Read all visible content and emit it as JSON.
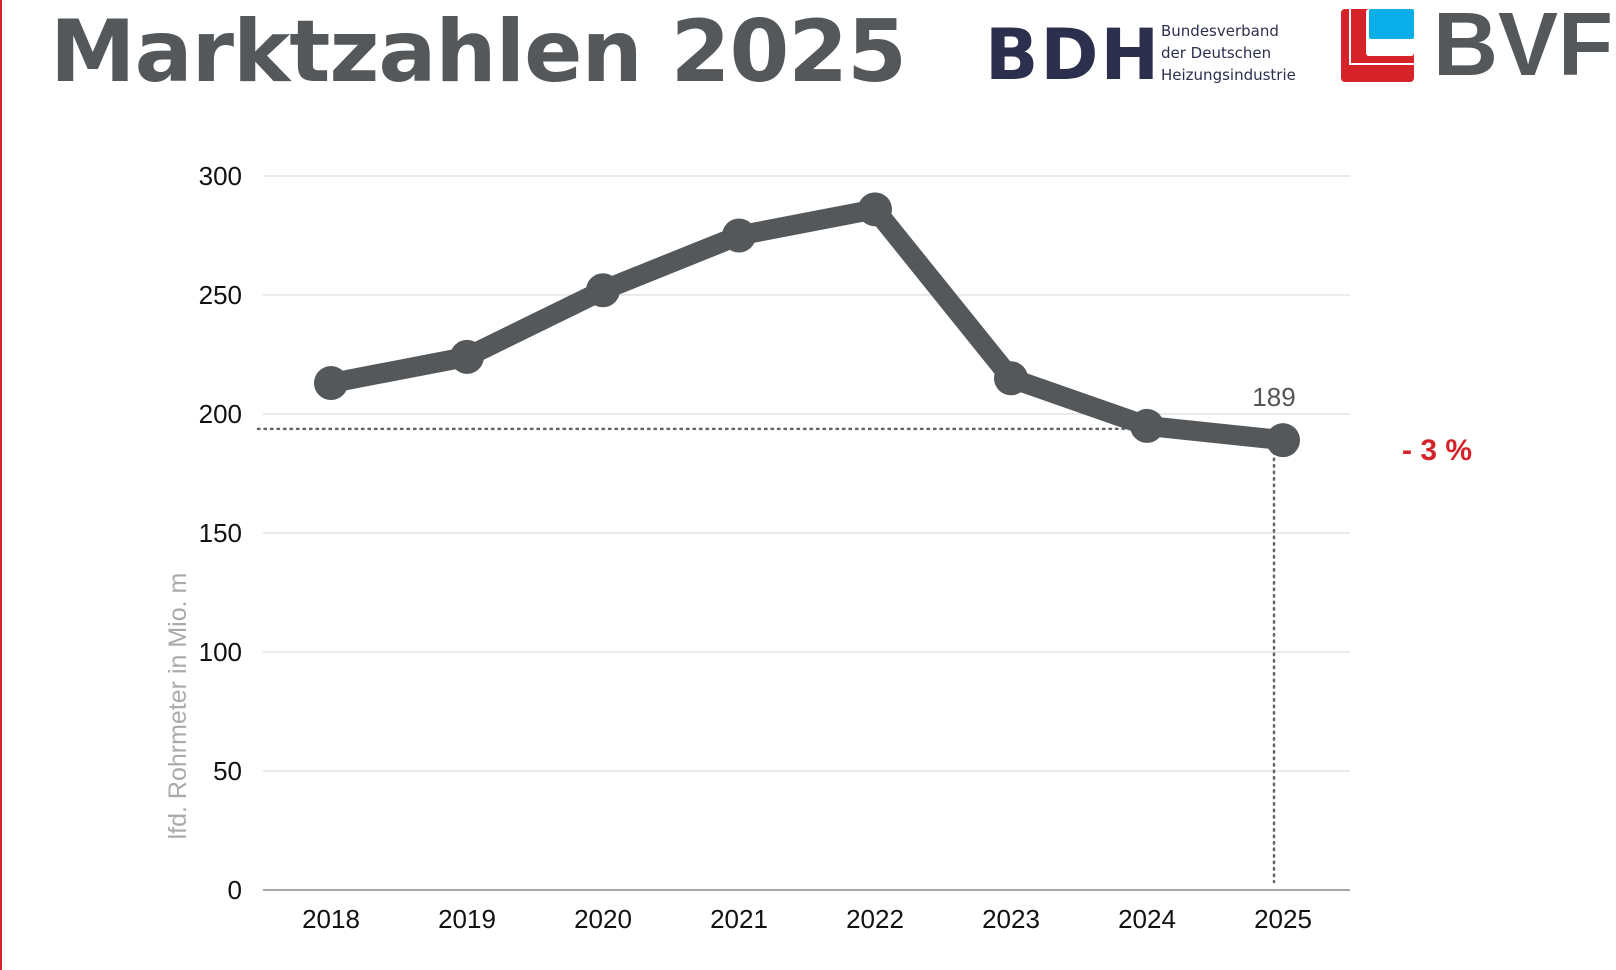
{
  "header": {
    "title": "Marktzahlen 2025",
    "bdh_logo": "BDH",
    "bdh_subtitle": [
      "Bundesverband",
      "der Deutschen",
      "Heizungsindustrie"
    ],
    "bvf_logo": "BVF"
  },
  "colors": {
    "line": "#55585a",
    "accent": "#d62229",
    "bvf_blue": "#0aaee8",
    "bdh_navy": "#2d2f4e"
  },
  "chart_data": {
    "type": "line",
    "title": "",
    "xlabel": "",
    "ylabel": "lfd. Rohrmeter in Mio. m",
    "categories": [
      "2018",
      "2019",
      "2020",
      "2021",
      "2022",
      "2023",
      "2024",
      "2025"
    ],
    "series": [
      {
        "name": "Rohrmeter",
        "values": [
          213,
          224,
          252,
          275,
          286,
          215,
          195,
          189
        ]
      }
    ],
    "ylim": [
      0,
      300
    ],
    "yticks": [
      0,
      50,
      100,
      150,
      200,
      250,
      300
    ],
    "grid": true,
    "annotations": {
      "last_value_label": "189",
      "change_label": "- 3 %"
    }
  }
}
